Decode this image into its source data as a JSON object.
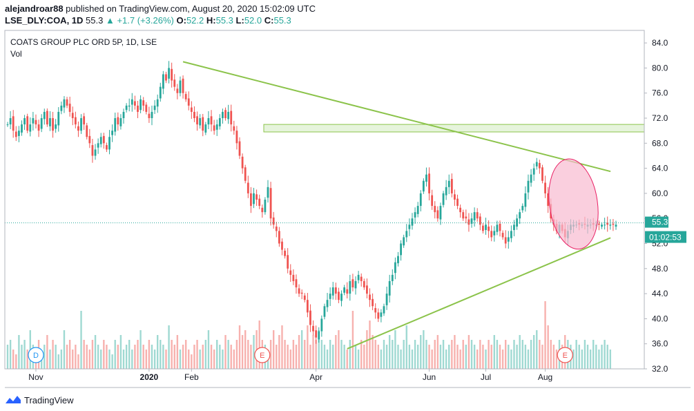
{
  "header": {
    "username": "alejandroar88",
    "published_text": " published on TradingView.com, August 20, 2020 15:02:09 UTC",
    "symbol": "LSE_DLY:COA, 1D",
    "last": "55.3",
    "change": "▲ +1.7 (+3.26%)",
    "o_label": "O:",
    "o_val": "52.2",
    "h_label": "H:",
    "h_val": "55.3",
    "l_label": "L:",
    "l_val": "52.0",
    "c_label": "C:",
    "c_val": "55.3"
  },
  "legend": {
    "title": "COATS GROUP PLC ORD 5P, 1D, LSE",
    "vol": "Vol"
  },
  "footer": {
    "brand": "TradingView"
  },
  "colors": {
    "up": "#26a69a",
    "down": "#ef5350",
    "up_vol": "#9fd9d2",
    "down_vol": "#f7b1ae",
    "trendline": "#8bc34a",
    "zone_fill": "#e6f4dc",
    "ellipse_fill": "#f8bbd0",
    "ellipse_stroke": "#e91e63",
    "price_label": "#26a69a",
    "text": "#131722"
  },
  "chart_data": {
    "type": "candlestick",
    "title": "COATS GROUP PLC ORD 5P, 1D, LSE",
    "y_ticks": [
      "84.0",
      "80.0",
      "76.0",
      "72.0",
      "68.0",
      "64.0",
      "60.0",
      "56.0",
      "52.0",
      "48.0",
      "44.0",
      "40.0",
      "36.0",
      "32.0"
    ],
    "ylim": [
      32,
      86
    ],
    "x_ticks": [
      {
        "label": "Nov",
        "bold": false,
        "index": 10
      },
      {
        "label": "2020",
        "bold": true,
        "index": 50
      },
      {
        "label": "Feb",
        "bold": false,
        "index": 65
      },
      {
        "label": "Apr",
        "bold": false,
        "index": 109
      },
      {
        "label": "Jun",
        "bold": false,
        "index": 149
      },
      {
        "label": "Jul",
        "bold": false,
        "index": 169
      },
      {
        "label": "Aug",
        "bold": false,
        "index": 190
      }
    ],
    "n_bars": 216,
    "last_price": "55.3",
    "countdown": "01:02:53",
    "event_markers": [
      {
        "label": "D",
        "index": 10,
        "color": "#2196f3"
      },
      {
        "label": "E",
        "index": 90,
        "color": "#ef5350"
      },
      {
        "label": "E",
        "index": 197,
        "color": "#ef5350"
      }
    ],
    "close_series": [
      71,
      72,
      70,
      69,
      70,
      71,
      72,
      70,
      71,
      72,
      71,
      70,
      72,
      73,
      71,
      72,
      70,
      71,
      73,
      74,
      75,
      74,
      73,
      72,
      71,
      70,
      72,
      71,
      69,
      68,
      66,
      67,
      68,
      69,
      68,
      67,
      69,
      70,
      72,
      71,
      72,
      73,
      74,
      74,
      75,
      74,
      73,
      75,
      74,
      73,
      72,
      73,
      74,
      75,
      77,
      79,
      78,
      80,
      78,
      77,
      76,
      78,
      76,
      75,
      74,
      73,
      72,
      71,
      72,
      70,
      71,
      72,
      71,
      70,
      71,
      72,
      73,
      72,
      73,
      71,
      70,
      68,
      66,
      64,
      62,
      60,
      58,
      60,
      59,
      58,
      57,
      59,
      61,
      56,
      55,
      54,
      52,
      51,
      50,
      48,
      47,
      46,
      45,
      44,
      44,
      43,
      41,
      39,
      38,
      37,
      38,
      40,
      42,
      43,
      44,
      45,
      44,
      43,
      44,
      45,
      44,
      46,
      45,
      46,
      47,
      46,
      45,
      44,
      43,
      42,
      41,
      40,
      41,
      42,
      44,
      46,
      47,
      49,
      50,
      52,
      53,
      54,
      55,
      56,
      57,
      58,
      60,
      62,
      63,
      60,
      58,
      57,
      56,
      58,
      60,
      61,
      62,
      60,
      59,
      58,
      57,
      56,
      56,
      55,
      56,
      57,
      56,
      55,
      54,
      55,
      54,
      53,
      54,
      55,
      54,
      53,
      52,
      53,
      54,
      55,
      56,
      57,
      58,
      60,
      62,
      63,
      64,
      65,
      64,
      62,
      60,
      58,
      56,
      55,
      54,
      55,
      54,
      53,
      54,
      55,
      55,
      55,
      55,
      55,
      55,
      55,
      55,
      55,
      55,
      55,
      55,
      55,
      55,
      55,
      55,
      55,
      55
    ],
    "volume_series": [
      5,
      6,
      4,
      3,
      7,
      5,
      6,
      4,
      8,
      5,
      4,
      6,
      3,
      5,
      7,
      4,
      6,
      5,
      3,
      4,
      8,
      5,
      6,
      4,
      5,
      3,
      12,
      6,
      5,
      4,
      6,
      7,
      5,
      4,
      6,
      5,
      4,
      3,
      6,
      5,
      7,
      4,
      5,
      6,
      4,
      5,
      6,
      8,
      5,
      4,
      6,
      5,
      4,
      7,
      6,
      5,
      4,
      9,
      6,
      5,
      7,
      4,
      5,
      6,
      4,
      3,
      5,
      6,
      4,
      5,
      6,
      8,
      5,
      4,
      6,
      5,
      4,
      7,
      6,
      5,
      4,
      6,
      9,
      7,
      8,
      6,
      5,
      7,
      8,
      10,
      6,
      5,
      4,
      6,
      8,
      5,
      7,
      9,
      6,
      5,
      4,
      6,
      5,
      7,
      8,
      6,
      9,
      5,
      7,
      6,
      8,
      6,
      5,
      4,
      6,
      5,
      7,
      8,
      6,
      5,
      4,
      6,
      12,
      5,
      4,
      6,
      5,
      8,
      10,
      7,
      6,
      5,
      4,
      6,
      5,
      7,
      6,
      8,
      5,
      4,
      6,
      9,
      5,
      4,
      6,
      5,
      7,
      8,
      6,
      5,
      4,
      6,
      7,
      5,
      6,
      4,
      5,
      6,
      7,
      5,
      4,
      6,
      5,
      7,
      6,
      5,
      4,
      6,
      5,
      4,
      6,
      5,
      7,
      6,
      5,
      4,
      6,
      5,
      4,
      6,
      5,
      7,
      6,
      5,
      4,
      6,
      7,
      8,
      6,
      5,
      14,
      9,
      6,
      5,
      4,
      6,
      5,
      7,
      6,
      5,
      4,
      6,
      5,
      4,
      6,
      5,
      4,
      6,
      5,
      4,
      5,
      6,
      5,
      4
    ]
  },
  "annotations": {
    "resistance_zone": [
      69.8,
      71.0
    ],
    "upper_trendline": {
      "from_index": 62,
      "from_value": 81,
      "to_index": 216,
      "to_value": 63.5
    },
    "lower_trendline": {
      "from_index": 120,
      "from_value": 35.2,
      "to_index": 216,
      "to_value": 52.9
    },
    "ellipse": {
      "center_index": 200,
      "center_value": 58.3,
      "width_bars": 15,
      "height_value": 14.5
    }
  }
}
